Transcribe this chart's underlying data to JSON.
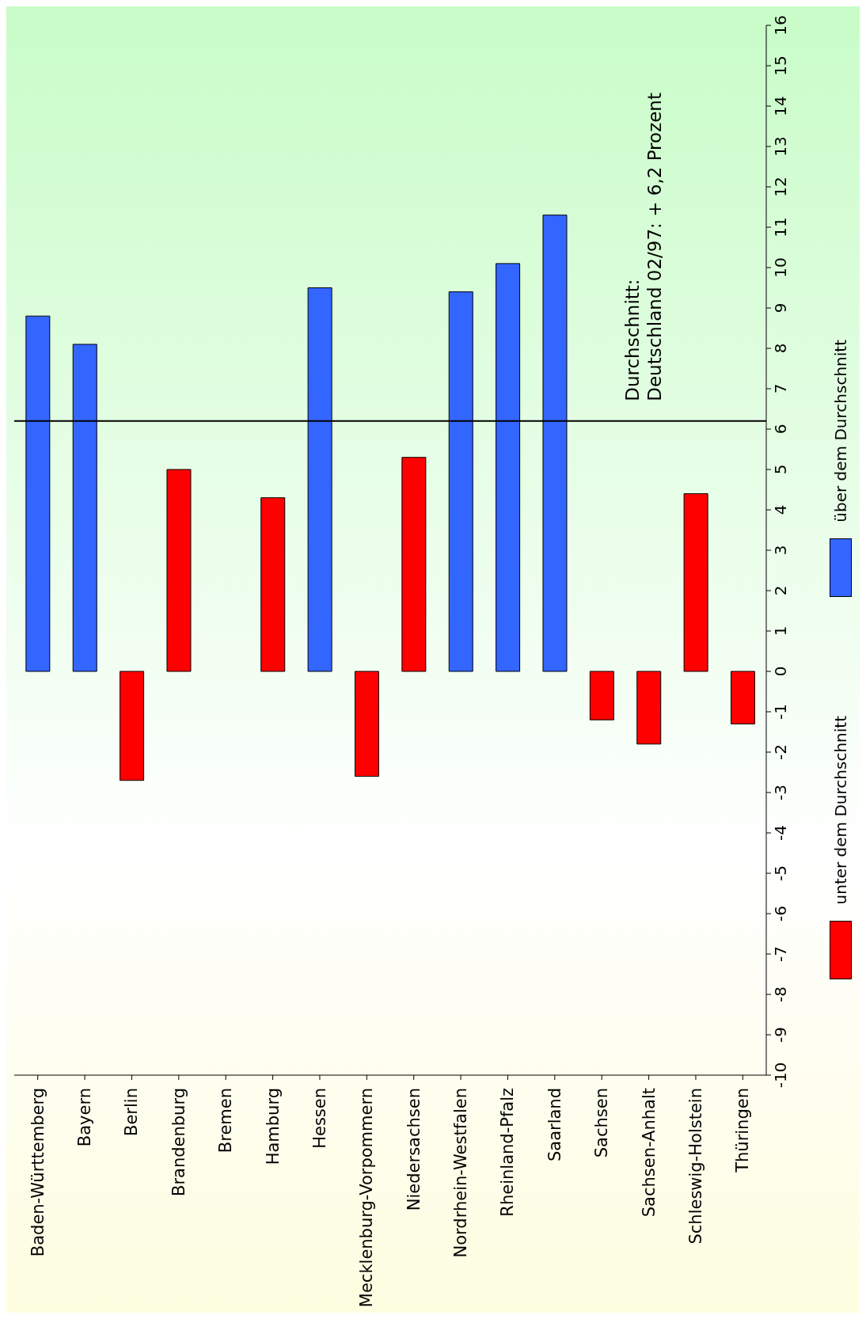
{
  "chart_data": {
    "type": "bar",
    "stacked": true,
    "categories": [
      "Baden-Württemberg",
      "Bayern",
      "Berlin",
      "Brandenburg",
      "Bremen",
      "Hamburg",
      "Hessen",
      "Mecklenburg-Vorpommern",
      "Niedersachsen",
      "Nordrhein-Westfalen",
      "Rheinland-Pfalz",
      "Saarland",
      "Sachsen",
      "Sachsen-Anhalt",
      "Schleswig-Holstein",
      "Thüringen"
    ],
    "series": [
      {
        "name": "über dem Durchschnitt",
        "color": "#3366ff",
        "values": [
          8.8,
          8.1,
          null,
          null,
          null,
          null,
          9.5,
          null,
          null,
          9.4,
          10.1,
          11.3,
          null,
          null,
          null,
          null
        ]
      },
      {
        "name": "unter dem Durchschnitt",
        "color": "#ff0000",
        "values": [
          null,
          null,
          -2.7,
          5.0,
          0,
          4.3,
          null,
          -2.6,
          5.3,
          null,
          null,
          null,
          -1.2,
          -1.8,
          4.4,
          -1.3
        ]
      }
    ],
    "ylim": [
      -10,
      16
    ],
    "yticks": [
      -10,
      -9,
      -8,
      -7,
      -6,
      -5,
      -4,
      -3,
      -2,
      -1,
      0,
      1,
      2,
      3,
      4,
      5,
      6,
      7,
      8,
      9,
      10,
      11,
      12,
      13,
      14,
      15,
      16
    ],
    "ref_lines": [
      {
        "axis": "y",
        "value": 6.2,
        "label": "Durchschnitt:\nDeutschland 02/97: + 6,2 Prozent",
        "color": "#000000"
      }
    ],
    "legend": "right"
  }
}
